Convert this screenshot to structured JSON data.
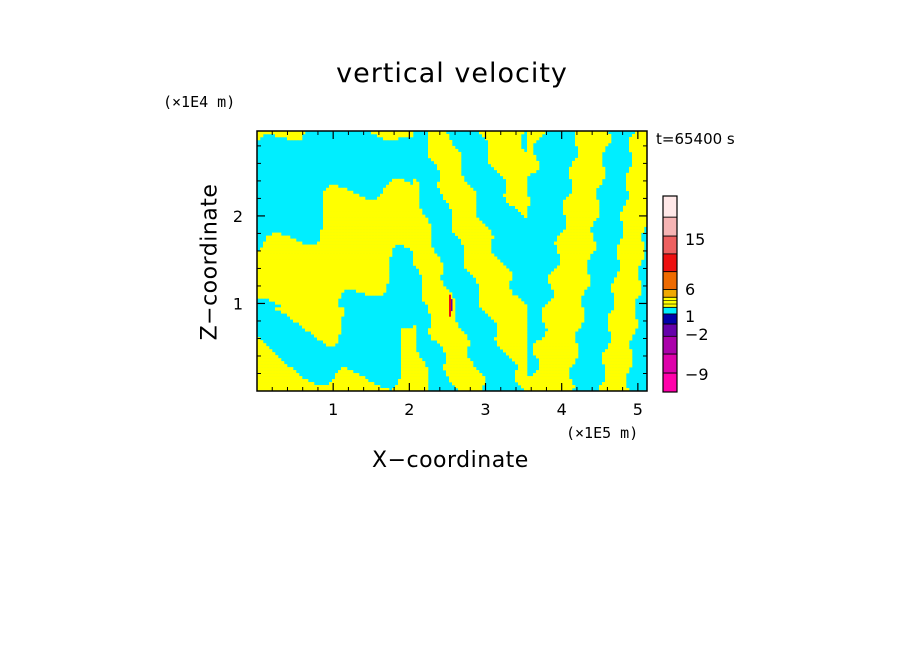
{
  "chart_data": {
    "type": "heatmap",
    "title": "vertical velocity",
    "xlabel": "X−coordinate",
    "ylabel": "Z−coordinate",
    "x_unit": "(×1E5 m)",
    "y_unit": "(×1E4 m)",
    "time_label": "t=65400 s",
    "xlim": [
      0.0,
      5.12
    ],
    "ylim": [
      0.0,
      2.97
    ],
    "x_ticks": [
      1,
      2,
      3,
      4,
      5
    ],
    "y_ticks": [
      1,
      2
    ],
    "colorbar": {
      "tick_labels": [
        {
          "label": "15",
          "value": 15
        },
        {
          "label": "6",
          "value": 6
        },
        {
          "label": "1",
          "value": 1
        },
        {
          "label": "−2",
          "value": -2
        },
        {
          "label": "−9",
          "value": -9
        }
      ],
      "bands": [
        {
          "color": "#ffe8e8"
        },
        {
          "color": "#f6b4b4"
        },
        {
          "color": "#ee6060"
        },
        {
          "color": "#ee1010"
        },
        {
          "color": "#ee6a00"
        },
        {
          "color": "#f0a800"
        },
        {
          "color": "#ffff00"
        },
        {
          "color": "#00eeff"
        },
        {
          "color": "#0000aa"
        },
        {
          "color": "#6600aa"
        },
        {
          "color": "#aa00aa"
        },
        {
          "color": "#dd00aa"
        },
        {
          "color": "#ff00aa"
        }
      ]
    },
    "field_colors": {
      "positive": "#ffff00",
      "negative": "#00eeff",
      "extreme_positive": "#ee1010",
      "extreme_negative": "#6600aa"
    }
  }
}
